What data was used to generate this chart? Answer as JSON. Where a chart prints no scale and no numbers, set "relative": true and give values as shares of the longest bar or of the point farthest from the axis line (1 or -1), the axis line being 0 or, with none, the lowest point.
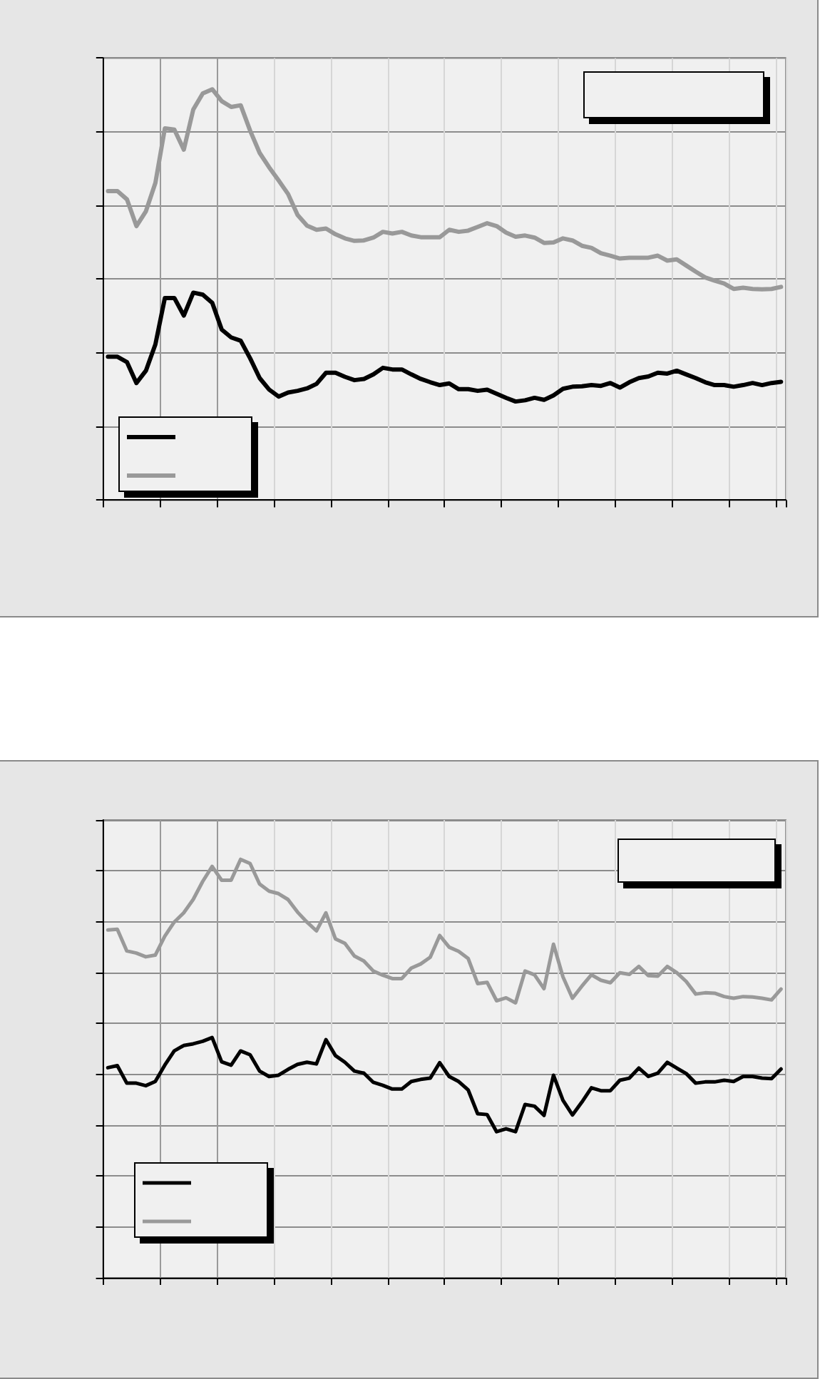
{
  "chart_data": [
    {
      "type": "line",
      "relative": true,
      "grid": true,
      "categories": [
        null,
        null,
        null,
        null,
        null,
        null,
        null,
        null,
        null,
        null,
        null,
        null,
        null,
        null,
        null,
        null,
        null,
        null,
        null,
        null,
        null,
        null,
        null,
        null,
        null,
        null,
        null,
        null,
        null,
        null,
        null,
        null,
        null,
        null,
        null,
        null,
        null,
        null,
        null,
        null,
        null,
        null,
        null,
        null,
        null,
        null,
        null,
        null,
        null,
        null,
        null,
        null,
        null,
        null,
        null,
        null,
        null,
        null,
        null,
        null,
        null,
        null,
        null,
        null,
        null,
        null,
        null,
        null,
        null,
        null,
        null,
        null
      ],
      "series": [
        {
          "color": "#000000",
          "values": [
            0.349,
            0.349,
            0.336,
            0.285,
            0.315,
            0.379,
            0.492,
            0.492,
            0.449,
            0.505,
            0.5,
            0.48,
            0.415,
            0.396,
            0.388,
            0.345,
            0.297,
            0.269,
            0.252,
            0.262,
            0.266,
            0.272,
            0.283,
            0.31,
            0.31,
            0.3,
            0.292,
            0.295,
            0.306,
            0.322,
            0.318,
            0.318,
            0.306,
            0.295,
            0.287,
            0.28,
            0.284,
            0.27,
            0.27,
            0.266,
            0.269,
            0.259,
            0.249,
            0.24,
            0.243,
            0.249,
            0.244,
            0.255,
            0.271,
            0.276,
            0.277,
            0.28,
            0.278,
            0.285,
            0.274,
            0.287,
            0.297,
            0.301,
            0.31,
            0.308,
            0.315,
            0.306,
            0.297,
            0.287,
            0.28,
            0.28,
            0.276,
            0.28,
            0.285,
            0.28,
            0.285,
            0.288
          ]
        },
        {
          "color": "#999999",
          "values": [
            0.752,
            0.752,
            0.732,
            0.667,
            0.703,
            0.772,
            0.905,
            0.902,
            0.853,
            0.951,
            0.99,
            1,
            0.971,
            0.957,
            0.961,
            0.899,
            0.845,
            0.81,
            0.778,
            0.745,
            0.694,
            0.668,
            0.658,
            0.661,
            0.647,
            0.637,
            0.631,
            0.632,
            0.639,
            0.653,
            0.649,
            0.653,
            0.644,
            0.64,
            0.64,
            0.64,
            0.658,
            0.653,
            0.656,
            0.665,
            0.674,
            0.667,
            0.651,
            0.641,
            0.644,
            0.639,
            0.626,
            0.627,
            0.637,
            0.632,
            0.619,
            0.614,
            0.601,
            0.595,
            0.588,
            0.59,
            0.59,
            0.59,
            0.595,
            0.583,
            0.586,
            0.571,
            0.556,
            0.542,
            0.534,
            0.527,
            0.514,
            0.517,
            0.514,
            0.513,
            0.514,
            0.519
          ]
        }
      ]
    },
    {
      "type": "line",
      "relative": true,
      "grid": true,
      "categories": [
        null,
        null,
        null,
        null,
        null,
        null,
        null,
        null,
        null,
        null,
        null,
        null,
        null,
        null,
        null,
        null,
        null,
        null,
        null,
        null,
        null,
        null,
        null,
        null,
        null,
        null,
        null,
        null,
        null,
        null,
        null,
        null,
        null,
        null,
        null,
        null,
        null,
        null,
        null,
        null,
        null,
        null,
        null,
        null,
        null,
        null,
        null,
        null,
        null,
        null,
        null,
        null,
        null,
        null,
        null,
        null,
        null,
        null,
        null,
        null,
        null,
        null,
        null,
        null,
        null,
        null,
        null,
        null,
        null,
        null,
        null,
        null
      ],
      "series": [
        {
          "color": "#000000",
          "values": [
            0.502,
            0.507,
            0.465,
            0.465,
            0.459,
            0.469,
            0.508,
            0.542,
            0.555,
            0.559,
            0.565,
            0.574,
            0.516,
            0.508,
            0.542,
            0.533,
            0.494,
            0.481,
            0.484,
            0.498,
            0.51,
            0.515,
            0.511,
            0.569,
            0.531,
            0.515,
            0.494,
            0.489,
            0.467,
            0.46,
            0.451,
            0.451,
            0.469,
            0.474,
            0.477,
            0.514,
            0.481,
            0.469,
            0.449,
            0.392,
            0.39,
            0.349,
            0.356,
            0.349,
            0.414,
            0.41,
            0.388,
            0.484,
            0.424,
            0.389,
            0.42,
            0.454,
            0.447,
            0.447,
            0.472,
            0.477,
            0.501,
            0.481,
            0.489,
            0.515,
            0.501,
            0.488,
            0.465,
            0.468,
            0.468,
            0.472,
            0.469,
            0.481,
            0.481,
            0.477,
            0.476,
            0.499
          ]
        },
        {
          "color": "#999999",
          "values": [
            0.831,
            0.833,
            0.781,
            0.776,
            0.767,
            0.771,
            0.816,
            0.85,
            0.872,
            0.904,
            0.947,
            0.983,
            0.95,
            0.95,
            1,
            0.99,
            0.941,
            0.924,
            0.918,
            0.904,
            0.874,
            0.85,
            0.829,
            0.872,
            0.81,
            0.799,
            0.769,
            0.757,
            0.733,
            0.723,
            0.715,
            0.715,
            0.74,
            0.75,
            0.766,
            0.818,
            0.79,
            0.78,
            0.763,
            0.703,
            0.706,
            0.662,
            0.669,
            0.657,
            0.733,
            0.724,
            0.691,
            0.797,
            0.719,
            0.668,
            0.697,
            0.724,
            0.711,
            0.705,
            0.729,
            0.725,
            0.744,
            0.722,
            0.721,
            0.744,
            0.729,
            0.708,
            0.678,
            0.681,
            0.68,
            0.672,
            0.668,
            0.672,
            0.671,
            0.668,
            0.664,
            0.69
          ]
        }
      ]
    }
  ]
}
